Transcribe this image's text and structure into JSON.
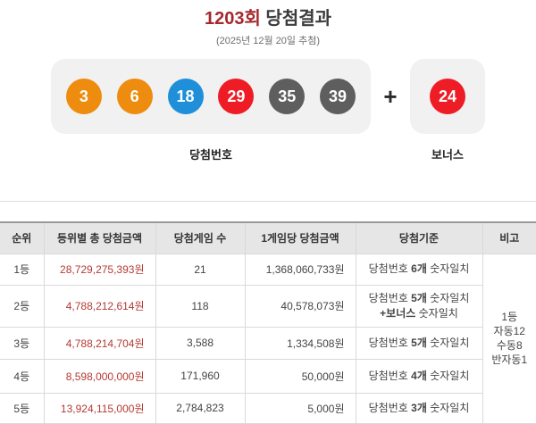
{
  "header": {
    "round": "1203회",
    "title": "당첨결과",
    "draw_date": "(2025년 12월 20일 추첨)"
  },
  "numbers": {
    "winning_label": "당첨번호",
    "bonus_label": "보너스",
    "plus": "+",
    "winning": [
      {
        "number": "3",
        "color": "#ee8c0f"
      },
      {
        "number": "6",
        "color": "#ee8c0f"
      },
      {
        "number": "18",
        "color": "#1e8fd8"
      },
      {
        "number": "29",
        "color": "#ee1c25"
      },
      {
        "number": "35",
        "color": "#5e5e5e"
      },
      {
        "number": "39",
        "color": "#5e5e5e"
      }
    ],
    "bonus": {
      "number": "24",
      "color": "#ee1c25"
    }
  },
  "table": {
    "headers": [
      "순위",
      "등위별 총 당첨금액",
      "당첨게임 수",
      "1게임당 당첨금액",
      "당첨기준",
      "비고"
    ],
    "rows": [
      {
        "rank": "1등",
        "total_prize": "28,729,275,393원",
        "winner_count": "21",
        "prize_per_game": "1,368,060,733원",
        "criteria": [
          {
            "pre": "당첨번호 ",
            "bold": "6개",
            "post": " 숫자일치"
          }
        ]
      },
      {
        "rank": "2등",
        "total_prize": "4,788,212,614원",
        "winner_count": "118",
        "prize_per_game": "40,578,073원",
        "criteria": [
          {
            "pre": "당첨번호 ",
            "bold": "5개",
            "post": " 숫자일치"
          },
          {
            "pre": "",
            "bold": "+보너스",
            "post": " 숫자일치"
          }
        ]
      },
      {
        "rank": "3등",
        "total_prize": "4,788,214,704원",
        "winner_count": "3,588",
        "prize_per_game": "1,334,508원",
        "criteria": [
          {
            "pre": "당첨번호 ",
            "bold": "5개",
            "post": " 숫자일치"
          }
        ]
      },
      {
        "rank": "4등",
        "total_prize": "8,598,000,000원",
        "winner_count": "171,960",
        "prize_per_game": "50,000원",
        "criteria": [
          {
            "pre": "당첨번호 ",
            "bold": "4개",
            "post": " 숫자일치"
          }
        ]
      },
      {
        "rank": "5등",
        "total_prize": "13,924,115,000원",
        "winner_count": "2,784,823",
        "prize_per_game": "5,000원",
        "criteria": [
          {
            "pre": "당첨번호 ",
            "bold": "3개",
            "post": " 숫자일치"
          }
        ]
      }
    ],
    "remarks": [
      "1등",
      "자동12",
      "수동8",
      "반자동1"
    ]
  },
  "colors": {
    "title_red": "#a5282d",
    "amount_red": "#b53a33",
    "panel_gray": "#f1f1f1"
  }
}
